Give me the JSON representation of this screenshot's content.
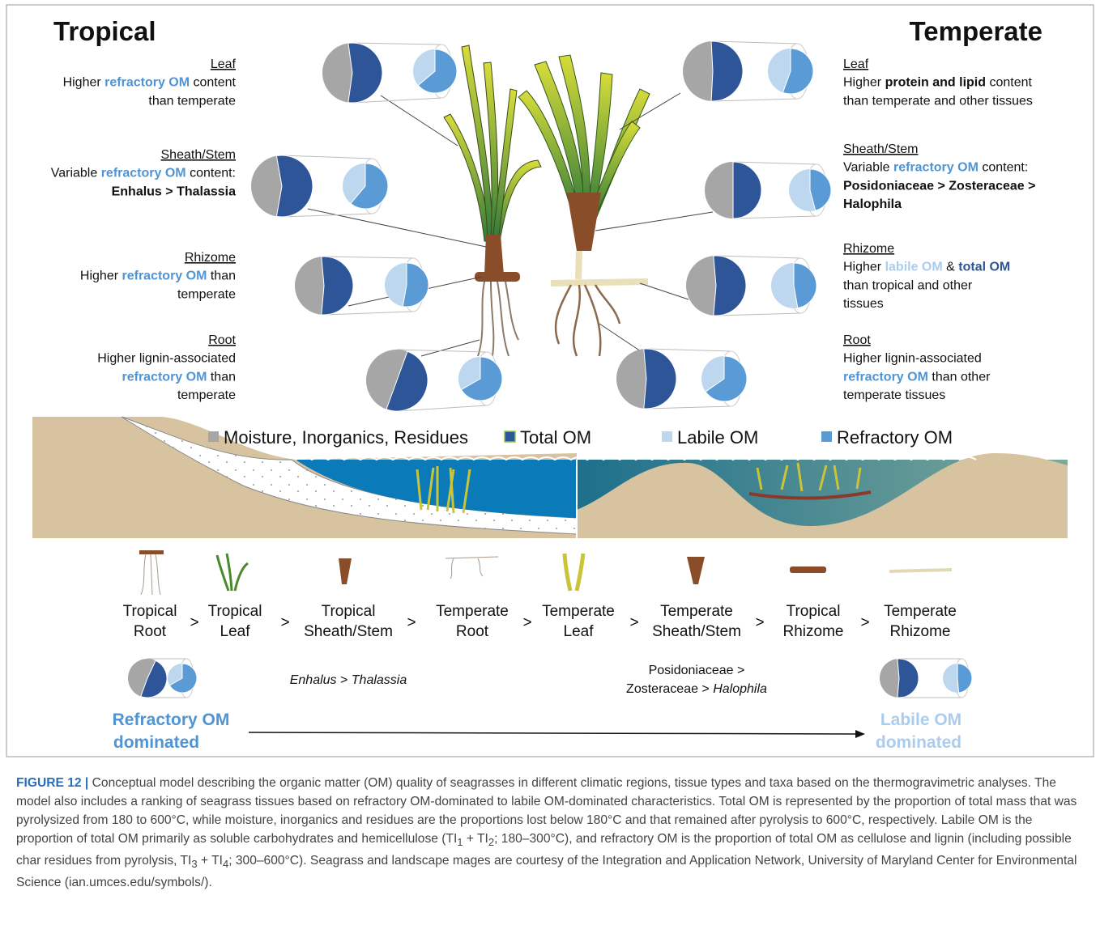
{
  "titles": {
    "tropical": "Tropical",
    "temperate": "Temperate"
  },
  "tropical": [
    {
      "heading": "Leaf",
      "lines": [
        [
          "Higher ",
          "refractory OM",
          " content"
        ],
        [
          "than temperate"
        ]
      ]
    },
    {
      "heading": "Sheath/Stem",
      "lines": [
        [
          "Variable ",
          "refractory OM",
          " content:"
        ],
        [
          "Enhalus > Thalassia"
        ]
      ]
    },
    {
      "heading": "Rhizome",
      "lines": [
        [
          "Higher ",
          "refractory OM",
          " than"
        ],
        [
          "temperate"
        ]
      ]
    },
    {
      "heading": "Root",
      "lines": [
        [
          "Higher lignin-associated"
        ],
        [
          "refractory OM",
          " than"
        ],
        [
          "temperate"
        ]
      ]
    }
  ],
  "temperate": [
    {
      "heading": "Leaf",
      "lines": [
        [
          "Higher ",
          "protein and lipid",
          " content"
        ],
        [
          "than temperate and other tissues"
        ]
      ]
    },
    {
      "heading": "Sheath/Stem",
      "lines": [
        [
          "Variable ",
          "refractory OM",
          " content:"
        ],
        [
          "Posidoniaceae > Zosteraceae >"
        ],
        [
          "Halophila"
        ]
      ]
    },
    {
      "heading": "Rhizome",
      "lines": [
        [
          "Higher ",
          "labile OM",
          " & ",
          "total OM"
        ],
        [
          "than tropical and other"
        ],
        [
          "tissues"
        ]
      ]
    },
    {
      "heading": "Root",
      "lines": [
        [
          "Higher lignin-associated"
        ],
        [
          "refractory OM",
          " than other"
        ],
        [
          "temperate tissues"
        ]
      ]
    }
  ],
  "legend": [
    "Moisture, Inorganics, Residues",
    "Total OM",
    "Labile OM",
    "Refractory OM"
  ],
  "ranking": {
    "items": [
      [
        "Tropical",
        "Root"
      ],
      [
        "Tropical",
        "Leaf"
      ],
      [
        "Tropical",
        "Sheath/Stem"
      ],
      [
        "Temperate",
        "Root"
      ],
      [
        "Temperate",
        "Leaf"
      ],
      [
        "Temperate",
        "Sheath/Stem"
      ],
      [
        "Tropical",
        "Rhizome"
      ],
      [
        "Temperate",
        "Rhizome"
      ]
    ],
    "separators": [
      ">",
      ">",
      ">",
      ">",
      ">",
      ">",
      ">"
    ]
  },
  "notes": {
    "tropical": [
      "Enhalus",
      " > ",
      "Thalassia"
    ],
    "temperate": [
      [
        "Posidoniaceae >"
      ],
      [
        "Zosteraceae > ",
        "Halophila"
      ]
    ]
  },
  "endpoints": {
    "left": [
      "Refractory OM",
      "dominated"
    ],
    "right": [
      "Labile OM",
      "dominated"
    ]
  },
  "caption": {
    "label": "FIGURE 12 |",
    "text": [
      " Conceptual model describing the organic matter (OM) quality of seagrasses in different climatic regions, tissue types and taxa based on the thermogravimetric analyses. The model also includes a ranking of seagrass tissues based on refractory OM-dominated to labile OM-dominated characteristics. Total OM is represented by the proportion of total mass that was pyrolysized from 180 to 600°C, while moisture, inorganics and residues are the proportions lost below 180°C and that remained after pyrolysis to 600°C, respectively. Labile OM is the proportion of total OM primarily as soluble carbohydrates and hemicellulose (TI",
      "1",
      " + TI",
      "2",
      "; 180–300°C), and refractory OM is the proportion of total OM as cellulose and lignin (including possible char residues from pyrolysis, TI",
      "3",
      " + TI",
      "4",
      "; 300–600°C). Seagrass and landscape mages are courtesy of the Integration and Application Network, University of Maryland Center for Environmental Science (ian.umces.edu/symbols/)."
    ]
  }
}
